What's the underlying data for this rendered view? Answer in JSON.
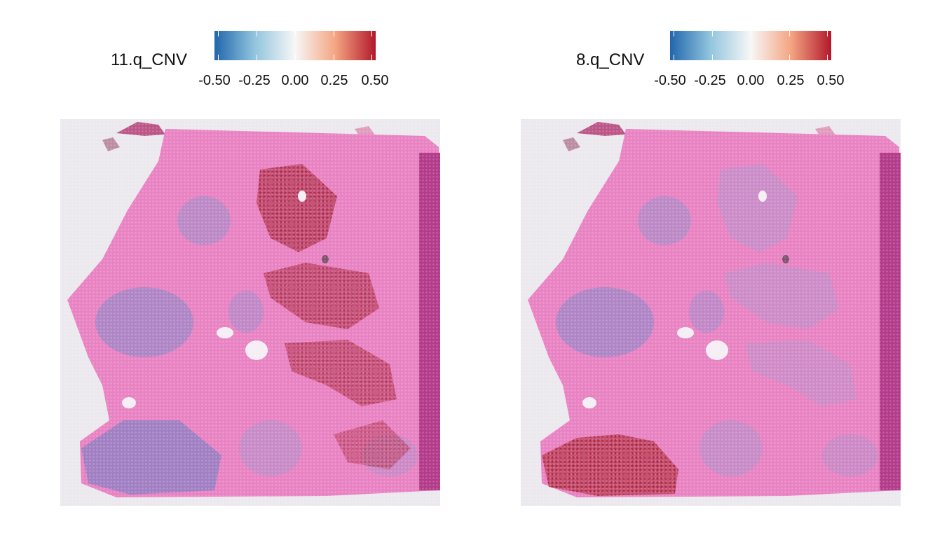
{
  "chart_data": [
    {
      "type": "heatmap",
      "title": "",
      "legend": {
        "title": "11.q_CNV",
        "placement": "top",
        "range": [
          -0.5,
          0.5
        ],
        "ticks": [
          "-0.50",
          "-0.25",
          "0.00",
          "0.25",
          "0.50"
        ],
        "colormap": [
          "#2166ac",
          "#92c5de",
          "#f7f7f7",
          "#f4a582",
          "#b2182b"
        ]
      },
      "hotspots": [
        {
          "region": "upper-center",
          "value": 0.45
        },
        {
          "region": "center",
          "value": 0.4
        },
        {
          "region": "lower-right",
          "value": 0.35
        }
      ]
    },
    {
      "type": "heatmap",
      "title": "",
      "legend": {
        "title": "8.q_CNV",
        "placement": "top",
        "range": [
          -0.5,
          0.5
        ],
        "ticks": [
          "-0.50",
          "-0.25",
          "0.00",
          "0.25",
          "0.50"
        ],
        "colormap": [
          "#2166ac",
          "#92c5de",
          "#f7f7f7",
          "#f4a582",
          "#b2182b"
        ]
      },
      "hotspots": [
        {
          "region": "lower-left",
          "value": 0.5
        }
      ]
    }
  ]
}
